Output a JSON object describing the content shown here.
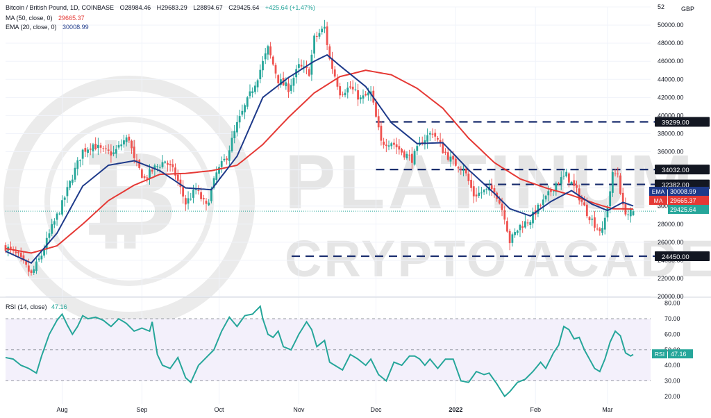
{
  "header": {
    "symbol": "Bitcoin / British Pound, 1D, COINBASE",
    "open": "O28984.46",
    "high": "H29683.29",
    "low": "L28894.67",
    "close": "C29425.64",
    "change": "+425.64 (+1.47%)",
    "ma_label": "MA (50, close, 0)",
    "ma_value": "29665.37",
    "ema_label": "EMA (20, close, 0)",
    "ema_value": "30008.99",
    "rsi_label": "RSI (14, close)",
    "rsi_value": "47.16"
  },
  "watermark": {
    "line1": "PLATINUM",
    "line2": "CRYPTO ACADEMY"
  },
  "colors": {
    "up": "#26a69a",
    "down": "#ef5350",
    "ema": "#1e3a8a",
    "ma": "#e53935",
    "rsi": "#26a69a",
    "level": "#1a2e6e",
    "price_tag": "#26a69a"
  },
  "chart_data": {
    "type": "candlestick",
    "currency": "GBP",
    "price_axis": {
      "ticks": [
        "20000.00",
        "22000.00",
        "24000.00",
        "26000.00",
        "28000.00",
        "30000.00",
        "32000.00",
        "34000.00",
        "36000.00",
        "38000.00",
        "40000.00",
        "42000.00",
        "44000.00",
        "46000.00",
        "48000.00",
        "50000.00",
        "52"
      ],
      "range": [
        20000,
        52000
      ]
    },
    "x_axis_labels": [
      {
        "label": "Aug",
        "day": 22
      },
      {
        "label": "Sep",
        "day": 53
      },
      {
        "label": "Oct",
        "day": 83
      },
      {
        "label": "Nov",
        "day": 114
      },
      {
        "label": "Dec",
        "day": 144
      },
      {
        "label": "2022",
        "day": 175
      },
      {
        "label": "Feb",
        "day": 206
      },
      {
        "label": "Mar",
        "day": 234
      }
    ],
    "horizontal_levels": [
      {
        "value": 39299,
        "label": "39299.00"
      },
      {
        "value": 34032,
        "label": "34032.00"
      },
      {
        "value": 32382,
        "label": "32382.00"
      },
      {
        "value": 24450,
        "label": "24450.00"
      }
    ],
    "price_tags": [
      {
        "name": "EMA",
        "value": "30008.99"
      },
      {
        "name": "MA",
        "value": "29665.37"
      },
      {
        "name": "",
        "value": "29425.64"
      }
    ],
    "close_anchors": [
      [
        0,
        25500
      ],
      [
        5,
        24400
      ],
      [
        10,
        22400
      ],
      [
        14,
        24600
      ],
      [
        18,
        27600
      ],
      [
        22,
        30200
      ],
      [
        26,
        33300
      ],
      [
        30,
        36100
      ],
      [
        34,
        36800
      ],
      [
        38,
        36000
      ],
      [
        42,
        35800
      ],
      [
        46,
        37200
      ],
      [
        48,
        37500
      ],
      [
        50,
        35000
      ],
      [
        54,
        33000
      ],
      [
        58,
        34200
      ],
      [
        62,
        35000
      ],
      [
        66,
        33500
      ],
      [
        70,
        30300
      ],
      [
        74,
        31800
      ],
      [
        78,
        29900
      ],
      [
        82,
        33600
      ],
      [
        86,
        35500
      ],
      [
        90,
        39000
      ],
      [
        94,
        41600
      ],
      [
        98,
        44300
      ],
      [
        102,
        47400
      ],
      [
        106,
        43900
      ],
      [
        110,
        43000
      ],
      [
        114,
        45400
      ],
      [
        118,
        44800
      ],
      [
        120,
        48500
      ],
      [
        124,
        49700
      ],
      [
        126,
        46200
      ],
      [
        130,
        42600
      ],
      [
        134,
        43100
      ],
      [
        138,
        41800
      ],
      [
        142,
        42500
      ],
      [
        146,
        37000
      ],
      [
        150,
        37100
      ],
      [
        154,
        36000
      ],
      [
        158,
        35200
      ],
      [
        162,
        37200
      ],
      [
        166,
        38200
      ],
      [
        170,
        36200
      ],
      [
        174,
        34800
      ],
      [
        178,
        34200
      ],
      [
        182,
        31200
      ],
      [
        186,
        31600
      ],
      [
        190,
        31900
      ],
      [
        194,
        28900
      ],
      [
        196,
        26100
      ],
      [
        200,
        27800
      ],
      [
        204,
        28500
      ],
      [
        206,
        29400
      ],
      [
        210,
        30800
      ],
      [
        214,
        32500
      ],
      [
        218,
        33400
      ],
      [
        222,
        31600
      ],
      [
        226,
        29300
      ],
      [
        230,
        27600
      ],
      [
        232,
        27200
      ],
      [
        234,
        30000
      ],
      [
        236,
        33400
      ],
      [
        238,
        33600
      ],
      [
        240,
        29800
      ],
      [
        242,
        29100
      ],
      [
        244,
        29425
      ]
    ],
    "ema20": [
      [
        0,
        25000
      ],
      [
        10,
        23700
      ],
      [
        20,
        27000
      ],
      [
        30,
        32200
      ],
      [
        40,
        34500
      ],
      [
        50,
        35000
      ],
      [
        60,
        33900
      ],
      [
        70,
        32000
      ],
      [
        80,
        31800
      ],
      [
        90,
        35500
      ],
      [
        100,
        42000
      ],
      [
        110,
        44200
      ],
      [
        120,
        46000
      ],
      [
        125,
        46700
      ],
      [
        130,
        45500
      ],
      [
        140,
        43200
      ],
      [
        150,
        39200
      ],
      [
        160,
        36900
      ],
      [
        170,
        37000
      ],
      [
        180,
        34000
      ],
      [
        190,
        31400
      ],
      [
        196,
        29700
      ],
      [
        204,
        28900
      ],
      [
        212,
        30500
      ],
      [
        220,
        31700
      ],
      [
        228,
        30200
      ],
      [
        234,
        29500
      ],
      [
        240,
        30400
      ],
      [
        244,
        30009
      ]
    ],
    "ma50": [
      [
        0,
        25300
      ],
      [
        10,
        24800
      ],
      [
        20,
        25600
      ],
      [
        30,
        28000
      ],
      [
        40,
        30600
      ],
      [
        50,
        32300
      ],
      [
        60,
        33500
      ],
      [
        70,
        33600
      ],
      [
        80,
        33900
      ],
      [
        90,
        34500
      ],
      [
        100,
        36800
      ],
      [
        110,
        39800
      ],
      [
        120,
        42500
      ],
      [
        130,
        44300
      ],
      [
        140,
        45000
      ],
      [
        150,
        44500
      ],
      [
        160,
        43000
      ],
      [
        170,
        40800
      ],
      [
        180,
        37500
      ],
      [
        190,
        34800
      ],
      [
        200,
        33000
      ],
      [
        210,
        32000
      ],
      [
        220,
        31200
      ],
      [
        230,
        30200
      ],
      [
        236,
        29700
      ],
      [
        244,
        29665
      ]
    ],
    "rsi_axis": {
      "ticks": [
        "20.00",
        "30.00",
        "40.00",
        "50.00",
        "60.00",
        "70.00",
        "80.00"
      ],
      "range": [
        15,
        83
      ],
      "bands": [
        30,
        70
      ],
      "midline": 50
    },
    "rsi": [
      [
        0,
        45
      ],
      [
        3,
        44
      ],
      [
        6,
        40
      ],
      [
        9,
        38
      ],
      [
        12,
        35
      ],
      [
        14,
        46
      ],
      [
        17,
        60
      ],
      [
        20,
        69
      ],
      [
        22,
        73
      ],
      [
        24,
        66
      ],
      [
        26,
        60
      ],
      [
        28,
        65
      ],
      [
        30,
        72
      ],
      [
        32,
        70
      ],
      [
        35,
        71
      ],
      [
        38,
        69
      ],
      [
        41,
        65
      ],
      [
        44,
        70
      ],
      [
        47,
        67
      ],
      [
        50,
        62
      ],
      [
        53,
        64
      ],
      [
        56,
        62
      ],
      [
        57,
        68
      ],
      [
        59,
        47
      ],
      [
        61,
        40
      ],
      [
        64,
        38
      ],
      [
        67,
        45
      ],
      [
        70,
        32
      ],
      [
        72,
        29
      ],
      [
        75,
        40
      ],
      [
        78,
        45
      ],
      [
        81,
        50
      ],
      [
        84,
        62
      ],
      [
        87,
        71
      ],
      [
        90,
        65
      ],
      [
        93,
        72
      ],
      [
        96,
        73
      ],
      [
        99,
        78
      ],
      [
        100,
        70
      ],
      [
        102,
        60
      ],
      [
        104,
        58
      ],
      [
        106,
        62
      ],
      [
        108,
        52
      ],
      [
        111,
        50
      ],
      [
        114,
        60
      ],
      [
        117,
        68
      ],
      [
        119,
        63
      ],
      [
        121,
        52
      ],
      [
        124,
        56
      ],
      [
        126,
        42
      ],
      [
        128,
        40
      ],
      [
        131,
        37
      ],
      [
        134,
        47
      ],
      [
        137,
        44
      ],
      [
        140,
        40
      ],
      [
        142,
        44
      ],
      [
        145,
        34
      ],
      [
        148,
        30
      ],
      [
        151,
        42
      ],
      [
        154,
        40
      ],
      [
        157,
        46
      ],
      [
        159,
        46
      ],
      [
        161,
        44
      ],
      [
        163,
        40
      ],
      [
        165,
        44
      ],
      [
        168,
        38
      ],
      [
        171,
        44
      ],
      [
        174,
        44
      ],
      [
        177,
        30
      ],
      [
        180,
        29
      ],
      [
        183,
        36
      ],
      [
        186,
        34
      ],
      [
        188,
        35
      ],
      [
        191,
        28
      ],
      [
        194,
        20
      ],
      [
        196,
        23
      ],
      [
        199,
        29
      ],
      [
        202,
        31
      ],
      [
        205,
        36
      ],
      [
        208,
        42
      ],
      [
        210,
        38
      ],
      [
        213,
        48
      ],
      [
        215,
        53
      ],
      [
        217,
        65
      ],
      [
        219,
        63
      ],
      [
        221,
        57
      ],
      [
        223,
        58
      ],
      [
        225,
        50
      ],
      [
        227,
        44
      ],
      [
        229,
        38
      ],
      [
        231,
        36
      ],
      [
        233,
        44
      ],
      [
        235,
        55
      ],
      [
        237,
        62
      ],
      [
        239,
        59
      ],
      [
        241,
        48
      ],
      [
        243,
        46
      ],
      [
        244,
        47
      ]
    ]
  }
}
